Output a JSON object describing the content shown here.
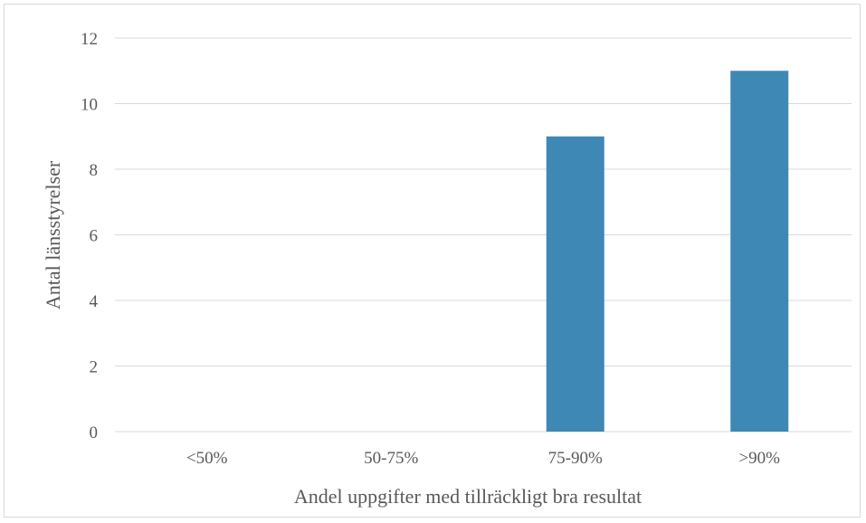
{
  "chart_data": {
    "type": "bar",
    "title": "",
    "xlabel": "Andel uppgifter med tillräckligt bra resultat",
    "ylabel": "Antal länsstyrelser",
    "categories": [
      "<50%",
      "50-75%",
      "75-90%",
      ">90%"
    ],
    "values": [
      0,
      0,
      9,
      11
    ],
    "ylim": [
      0,
      12
    ],
    "yticks": [
      "0",
      "2",
      "4",
      "6",
      "8",
      "10",
      "12"
    ],
    "grid": true,
    "legend": "none",
    "colors": {
      "bar": "#3e88b6",
      "grid": "#d9d9d9",
      "text": "#595959"
    }
  }
}
